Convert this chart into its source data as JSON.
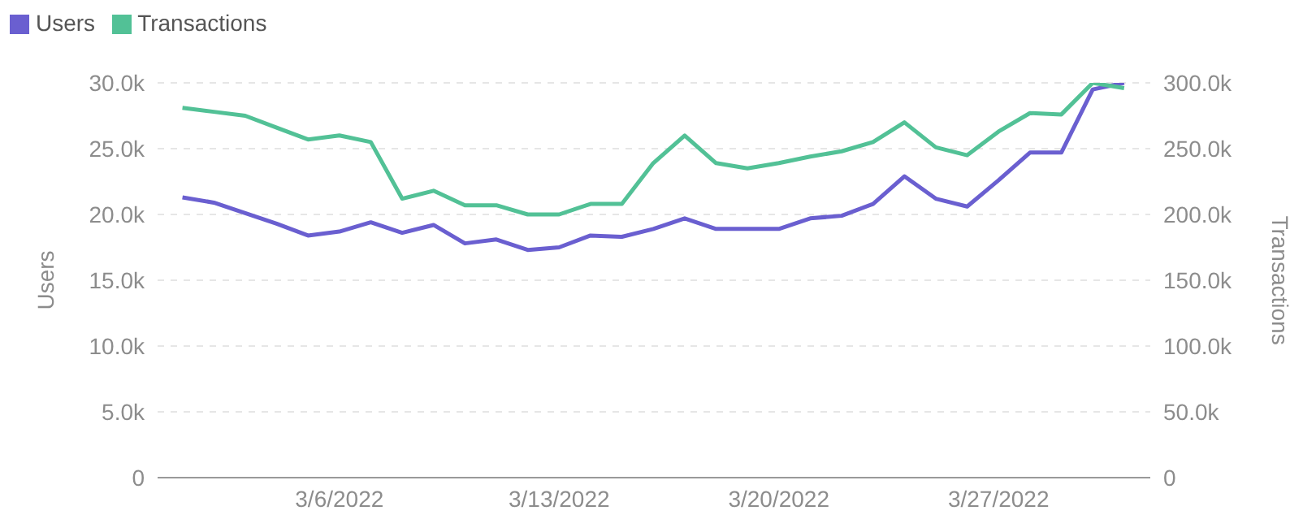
{
  "chart_data": {
    "type": "line",
    "ylabel": "Users",
    "y2label": "Transactions",
    "x": [
      "2022-03-01",
      "2022-03-02",
      "2022-03-03",
      "2022-03-04",
      "2022-03-05",
      "2022-03-06",
      "2022-03-07",
      "2022-03-08",
      "2022-03-09",
      "2022-03-10",
      "2022-03-11",
      "2022-03-12",
      "2022-03-13",
      "2022-03-14",
      "2022-03-15",
      "2022-03-16",
      "2022-03-17",
      "2022-03-18",
      "2022-03-19",
      "2022-03-20",
      "2022-03-21",
      "2022-03-22",
      "2022-03-23",
      "2022-03-24",
      "2022-03-25",
      "2022-03-26",
      "2022-03-27",
      "2022-03-28",
      "2022-03-29",
      "2022-03-30",
      "2022-03-31"
    ],
    "series": [
      {
        "name": "Users",
        "color": "#6a5fd0",
        "axis": "y",
        "values": [
          21300,
          20900,
          20100,
          19300,
          18400,
          18700,
          19400,
          18600,
          19200,
          17800,
          18100,
          17300,
          17500,
          18400,
          18300,
          18900,
          19700,
          18900,
          18900,
          18900,
          19700,
          19900,
          20800,
          22900,
          21200,
          20600,
          22600,
          24700,
          24700,
          29500,
          30000
        ]
      },
      {
        "name": "Transactions",
        "color": "#52c196",
        "axis": "y2",
        "values": [
          281000,
          278000,
          275000,
          266000,
          257000,
          260000,
          255000,
          212000,
          218000,
          207000,
          207000,
          200000,
          200000,
          208000,
          208000,
          239000,
          260000,
          239000,
          235000,
          239000,
          244000,
          248000,
          255000,
          270000,
          251000,
          245000,
          263000,
          277000,
          276000,
          300000,
          296000
        ]
      }
    ],
    "xlim": [
      "2022-02-28T05:00",
      "2022-03-31T20:00"
    ],
    "xticks": [
      {
        "value": "2022-03-06",
        "label": "3/6/2022"
      },
      {
        "value": "2022-03-13",
        "label": "3/13/2022"
      },
      {
        "value": "2022-03-20",
        "label": "3/20/2022"
      },
      {
        "value": "2022-03-27",
        "label": "3/27/2022"
      }
    ],
    "ylim": [
      0,
      30000
    ],
    "yticks": [
      0,
      {
        "value": 5000,
        "label": "5.0k"
      },
      {
        "value": 10000,
        "label": "10.0k"
      },
      {
        "value": 15000,
        "label": "15.0k"
      },
      {
        "value": 20000,
        "label": "20.0k"
      },
      {
        "value": 25000,
        "label": "25.0k"
      },
      {
        "value": 30000,
        "label": "30.0k"
      }
    ],
    "y2lim": [
      0,
      300000
    ],
    "y2ticks": [
      0,
      {
        "value": 50000,
        "label": "50.0k"
      },
      {
        "value": 100000,
        "label": "100.0k"
      },
      {
        "value": 150000,
        "label": "150.0k"
      },
      {
        "value": 200000,
        "label": "200.0k"
      },
      {
        "value": 250000,
        "label": "250.0k"
      },
      {
        "value": 300000,
        "label": "300.0k"
      }
    ],
    "grid": "y",
    "legend": "top left",
    "marker": "none",
    "line_style": "solid"
  }
}
